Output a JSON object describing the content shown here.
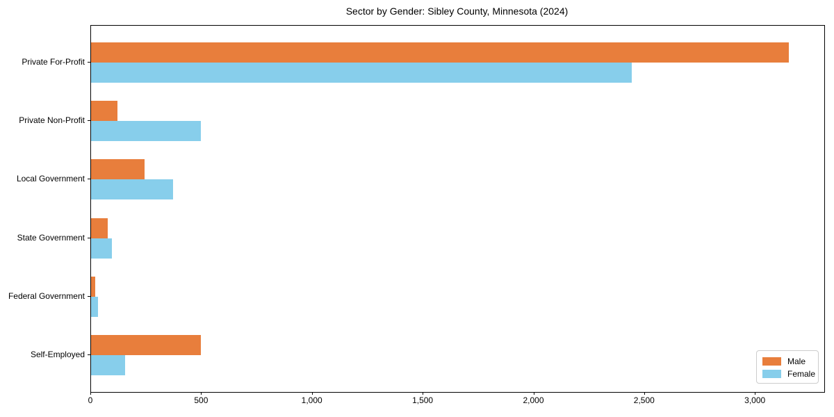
{
  "chart_data": {
    "type": "bar",
    "orientation": "horizontal",
    "title": "Sector by Gender: Sibley County, Minnesota (2024)",
    "categories": [
      "Private For-Profit",
      "Private Non-Profit",
      "Local Government",
      "State Government",
      "Federal Government",
      "Self-Employed"
    ],
    "series": [
      {
        "name": "Male",
        "color": "#e87e3c",
        "values": [
          3150,
          120,
          240,
          75,
          20,
          495
        ]
      },
      {
        "name": "Female",
        "color": "#87ceeb",
        "values": [
          2440,
          495,
          370,
          95,
          30,
          155
        ]
      }
    ],
    "xlim": [
      0,
      3310
    ],
    "xticks": [
      0,
      500,
      1000,
      1500,
      2000,
      2500,
      3000
    ],
    "xtick_labels": [
      "0",
      "500",
      "1,000",
      "1,500",
      "2,000",
      "2,500",
      "3,000"
    ],
    "xlabel": "",
    "ylabel": "",
    "grid": false,
    "legend_position": "lower right",
    "axis_color": "#000000",
    "background_color": "#ffffff"
  }
}
